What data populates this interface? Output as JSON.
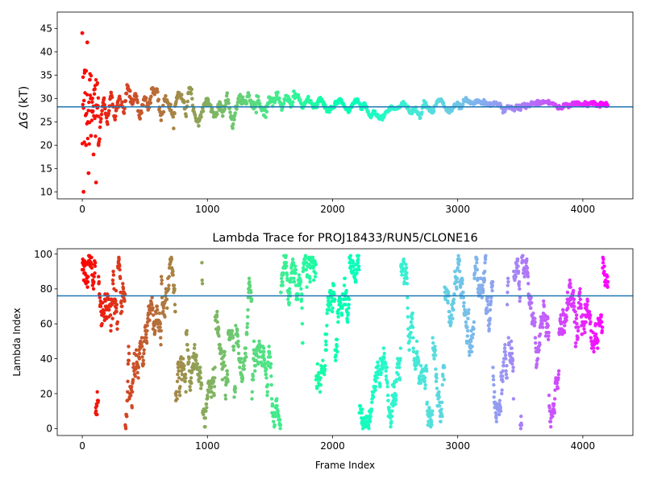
{
  "chart_data": [
    {
      "type": "scatter",
      "title": "",
      "xlabel": "",
      "ylabel": "ΔG (kT)",
      "ylabel_parts": {
        "symbol": "ΔG",
        "unit": " (kT)"
      },
      "xlim": [
        -200,
        4400
      ],
      "ylim": [
        8.5,
        48.5
      ],
      "xticks": [
        0,
        1000,
        2000,
        3000,
        4000
      ],
      "yticks": [
        10,
        15,
        20,
        25,
        30,
        35,
        40,
        45
      ],
      "hline": 28.2,
      "hline_color": "#1f77b4",
      "colormap": "rainbow",
      "grid": false,
      "series": [
        {
          "x_range": [
            0,
            4200
          ],
          "points_note": "",
          "x": [
            0,
            10,
            20,
            30,
            40,
            50,
            60,
            70,
            80,
            90,
            100,
            110,
            120,
            130,
            150,
            170,
            200,
            230,
            260,
            300,
            330,
            360,
            400,
            430,
            460,
            500,
            530,
            560,
            600,
            630,
            660,
            700,
            730,
            760,
            800,
            830,
            860,
            900,
            930,
            960,
            1000,
            1030,
            1060,
            1100,
            1130,
            1160,
            1200,
            1230,
            1260,
            1300,
            1330,
            1360,
            1400,
            1430,
            1460,
            1500,
            1530,
            1560,
            1600,
            1630,
            1660,
            1700,
            1730,
            1760,
            1800,
            1830,
            1860,
            1900,
            1930,
            1960,
            2000,
            2030,
            2060,
            2100,
            2130,
            2160,
            2200,
            2230,
            2260,
            2300,
            2330,
            2360,
            2400,
            2430,
            2460,
            2500,
            2530,
            2560,
            2600,
            2630,
            2660,
            2700,
            2730,
            2760,
            2800,
            2830,
            2860,
            2900,
            2930,
            2960,
            3000,
            3030,
            3060,
            3100,
            3130,
            3160,
            3200,
            3230,
            3260,
            3300,
            3330,
            3360,
            3400,
            3430,
            3460,
            3500,
            3530,
            3560,
            3600,
            3630,
            3660,
            3700,
            3730,
            3760,
            3800,
            3830,
            3860,
            3900,
            3930,
            3960,
            4000,
            4030,
            4060,
            4100,
            4130,
            4160,
            4200
          ],
          "y": [
            44,
            10,
            36,
            20,
            42,
            14,
            34,
            22,
            30,
            18,
            32,
            12,
            28,
            20,
            26,
            30,
            24,
            32,
            26,
            30,
            27,
            33,
            29,
            31,
            26,
            30,
            28,
            32,
            31,
            26,
            30,
            28,
            26,
            31,
            30,
            27,
            33,
            26,
            25,
            27,
            30,
            28,
            26,
            29,
            27,
            31,
            24,
            28,
            30,
            29,
            31,
            28,
            30,
            28,
            27,
            30,
            29,
            31,
            28,
            30,
            29,
            31,
            30,
            28,
            30,
            29,
            28,
            30,
            29,
            27,
            28,
            29,
            30,
            28,
            27,
            29,
            30,
            28,
            29,
            26,
            27,
            26,
            26,
            27,
            28,
            28,
            28,
            29,
            28,
            27,
            28,
            26,
            29,
            28,
            27,
            29,
            30,
            28,
            27,
            28,
            29,
            28,
            30,
            29,
            29,
            29.5,
            29,
            29,
            28.5,
            29,
            29,
            27.5,
            28,
            28,
            28,
            28,
            28.5,
            28.5,
            29,
            29,
            29,
            29.5,
            29,
            29,
            28,
            28,
            28.5,
            28.5,
            29,
            29,
            28.5,
            29,
            29,
            29,
            28.5,
            29,
            28.5
          ]
        }
      ]
    },
    {
      "type": "scatter",
      "title": "Lambda Trace for PROJ18433/RUN5/CLONE16",
      "xlabel": "Frame Index",
      "ylabel": "Lambda Index",
      "xlim": [
        -200,
        4400
      ],
      "ylim": [
        -4,
        103
      ],
      "xticks": [
        0,
        1000,
        2000,
        3000,
        4000
      ],
      "yticks": [
        0,
        20,
        40,
        60,
        80,
        100
      ],
      "hline": 76,
      "hline_color": "#1f77b4",
      "colormap": "rainbow",
      "grid": false,
      "series": [
        {
          "x_range": [
            0,
            4200
          ],
          "y_range": [
            0,
            99
          ]
        }
      ]
    }
  ]
}
